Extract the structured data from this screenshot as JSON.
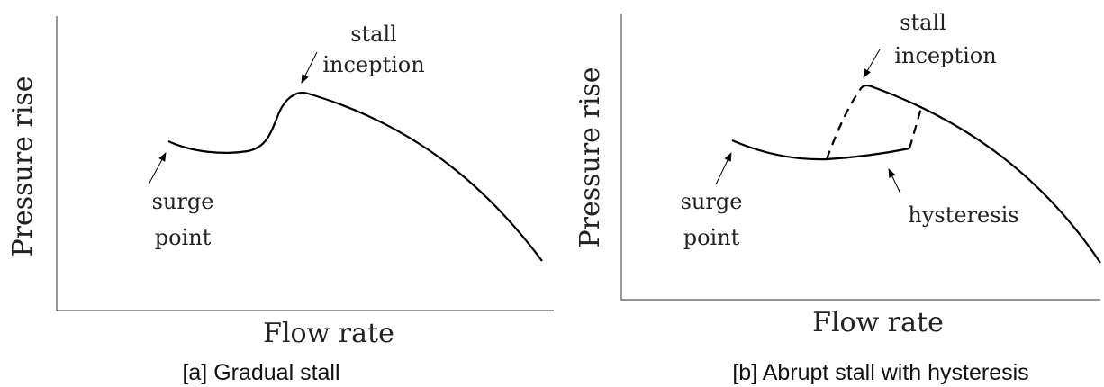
{
  "panels": [
    {
      "caption": "[a] Gradual stall",
      "y_label": "Pressure rise",
      "x_label": "Flow rate",
      "annotations": {
        "stall": [
          "stall",
          "inception"
        ],
        "surge": [
          "surge",
          "point"
        ]
      }
    },
    {
      "caption": "[b] Abrupt stall with hysteresis",
      "y_label": "Pressure rise",
      "x_label": "Flow rate",
      "annotations": {
        "stall": [
          "stall",
          "inception"
        ],
        "surge": [
          "surge",
          "point"
        ],
        "hysteresis": [
          "hysteresis"
        ]
      }
    }
  ]
}
